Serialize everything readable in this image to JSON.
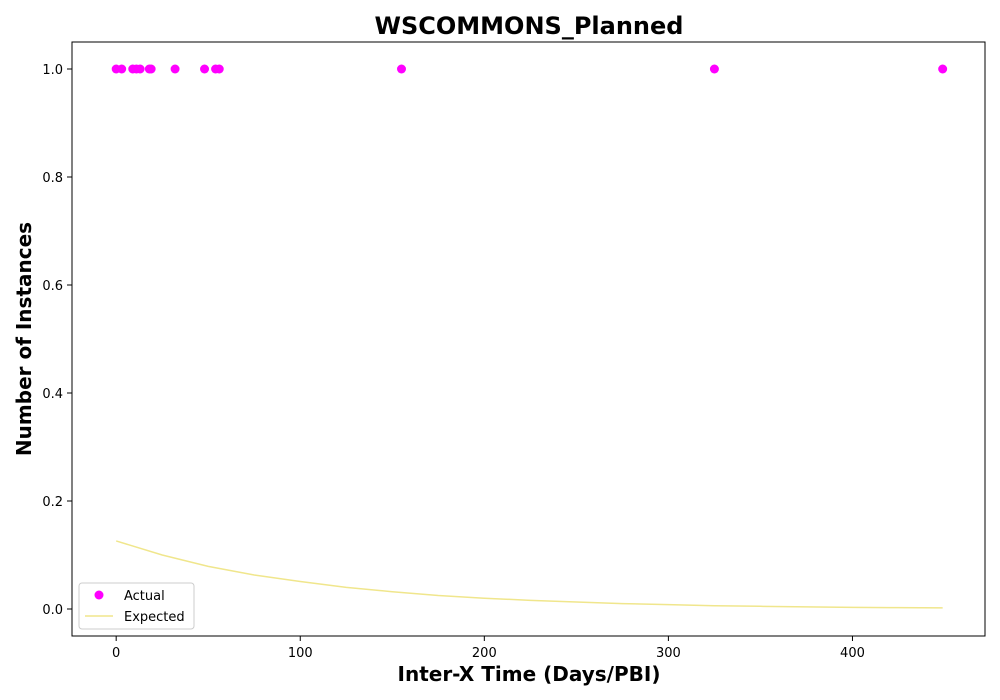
{
  "chart_data": {
    "type": "scatter",
    "title": "WSCOMMONS_Planned",
    "xlabel": "Inter-X Time (Days/PBI)",
    "ylabel": "Number of Instances",
    "xlim": [
      -24,
      472
    ],
    "ylim": [
      -0.05,
      1.05
    ],
    "xticks": [
      0,
      100,
      200,
      300,
      400
    ],
    "yticks": [
      0.0,
      0.2,
      0.4,
      0.6,
      0.8,
      1.0
    ],
    "grid": false,
    "legend_position": "lower-left",
    "series": [
      {
        "name": "Actual",
        "kind": "scatter",
        "color": "#ff00ff",
        "points": [
          {
            "x": 0,
            "y": 1.0
          },
          {
            "x": 3,
            "y": 1.0
          },
          {
            "x": 9,
            "y": 1.0
          },
          {
            "x": 11,
            "y": 1.0
          },
          {
            "x": 13,
            "y": 1.0
          },
          {
            "x": 18,
            "y": 1.0
          },
          {
            "x": 19,
            "y": 1.0
          },
          {
            "x": 32,
            "y": 1.0
          },
          {
            "x": 48,
            "y": 1.0
          },
          {
            "x": 54,
            "y": 1.0
          },
          {
            "x": 56,
            "y": 1.0
          },
          {
            "x": 155,
            "y": 1.0
          },
          {
            "x": 325,
            "y": 1.0
          },
          {
            "x": 449,
            "y": 1.0
          }
        ]
      },
      {
        "name": "Expected",
        "kind": "line",
        "color": "#f0e68c",
        "points": [
          {
            "x": 0,
            "y": 0.126
          },
          {
            "x": 25,
            "y": 0.1
          },
          {
            "x": 50,
            "y": 0.079
          },
          {
            "x": 75,
            "y": 0.063
          },
          {
            "x": 100,
            "y": 0.051
          },
          {
            "x": 125,
            "y": 0.04
          },
          {
            "x": 150,
            "y": 0.032
          },
          {
            "x": 175,
            "y": 0.025
          },
          {
            "x": 200,
            "y": 0.02
          },
          {
            "x": 225,
            "y": 0.016
          },
          {
            "x": 250,
            "y": 0.013
          },
          {
            "x": 275,
            "y": 0.01
          },
          {
            "x": 300,
            "y": 0.008
          },
          {
            "x": 325,
            "y": 0.006
          },
          {
            "x": 350,
            "y": 0.005
          },
          {
            "x": 375,
            "y": 0.004
          },
          {
            "x": 400,
            "y": 0.003
          },
          {
            "x": 425,
            "y": 0.0025
          },
          {
            "x": 449,
            "y": 0.002
          }
        ]
      }
    ]
  }
}
